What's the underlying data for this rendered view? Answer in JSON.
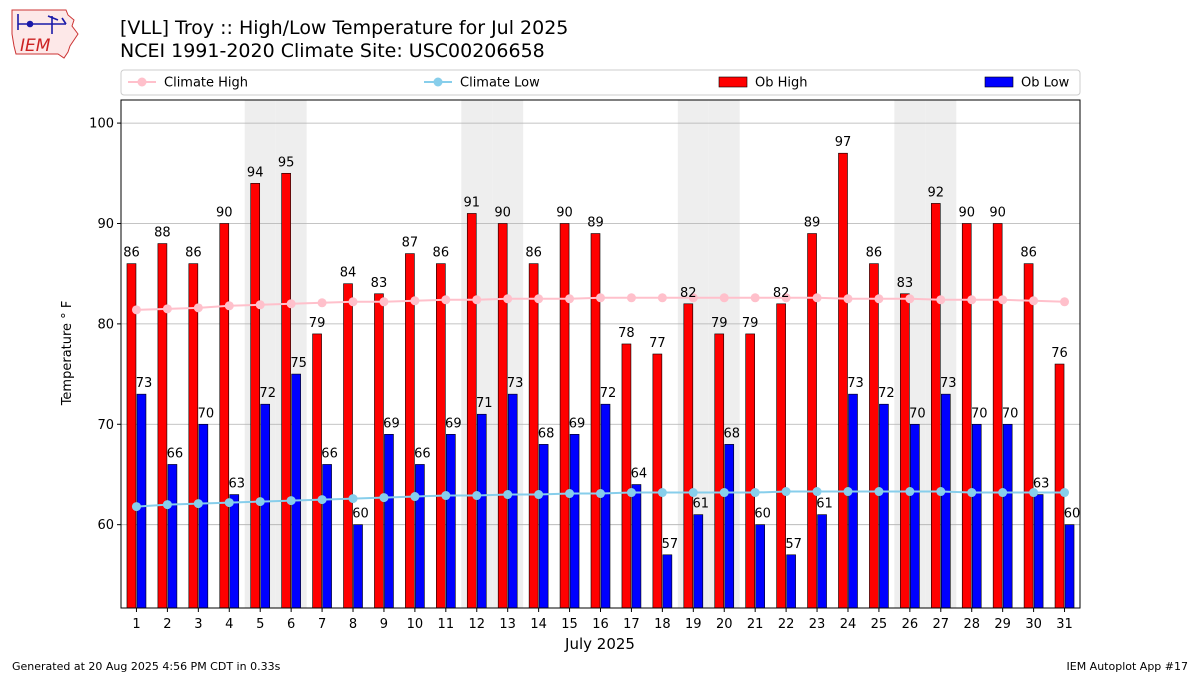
{
  "header": {
    "title_line1": "[VLL] Troy :: High/Low Temperature for Jul 2025",
    "title_line2": "NCEI 1991-2020 Climate Site: USC00206658",
    "logo_text": "IEM"
  },
  "footer": {
    "generated": "Generated at 20 Aug 2025 4:56 PM CDT in 0.33s",
    "app": "IEM Autoplot App #17"
  },
  "colors": {
    "ob_high": "#ff0000",
    "ob_low": "#0000ff",
    "climate_high": "#ffc0cb",
    "climate_low": "#87ceeb",
    "weekend_band": "#eeeeee",
    "grid": "#b0b0b0"
  },
  "chart_data": {
    "type": "bar",
    "xlabel": "July 2025",
    "ylabel": "Temperature ° F",
    "ylim": [
      51.7,
      102.3
    ],
    "yticks": [
      60,
      70,
      80,
      90,
      100
    ],
    "grid": "horizontal",
    "legend_position": "top",
    "categories": [
      "1",
      "2",
      "3",
      "4",
      "5",
      "6",
      "7",
      "8",
      "9",
      "10",
      "11",
      "12",
      "13",
      "14",
      "15",
      "16",
      "17",
      "18",
      "19",
      "20",
      "21",
      "22",
      "23",
      "24",
      "25",
      "26",
      "27",
      "28",
      "29",
      "30",
      "31"
    ],
    "weekend_days": [
      5,
      6,
      12,
      13,
      19,
      20,
      26,
      27
    ],
    "series": [
      {
        "name": "Ob High",
        "kind": "bar",
        "values": [
          86,
          88,
          86,
          90,
          94,
          95,
          79,
          84,
          83,
          87,
          86,
          91,
          90,
          86,
          90,
          89,
          78,
          77,
          82,
          79,
          79,
          82,
          89,
          97,
          86,
          83,
          92,
          90,
          90,
          86,
          76
        ],
        "labels": [
          "86",
          "88",
          "86",
          "90",
          "94",
          "95",
          "79",
          "84",
          "83",
          "87",
          "86",
          "91",
          "90",
          "86",
          "90",
          "89",
          "78",
          "77",
          "82",
          "79",
          "79",
          "82",
          "89",
          "97",
          "86",
          "83",
          "92",
          "90",
          "90",
          "86",
          "76"
        ]
      },
      {
        "name": "Ob Low",
        "kind": "bar",
        "values": [
          73,
          66,
          70,
          63,
          72,
          75,
          66,
          60,
          69,
          66,
          69,
          71,
          73,
          68,
          69,
          72,
          64,
          57,
          61,
          68,
          60,
          57,
          61,
          73,
          72,
          70,
          73,
          70,
          70,
          63,
          60
        ],
        "labels": [
          "73",
          "66",
          "70",
          "63",
          "72",
          "75",
          "66",
          "60",
          "69",
          "66",
          "69",
          "71",
          "73",
          "68",
          "69",
          "72",
          "64",
          "57",
          "61",
          "68",
          "60",
          "57",
          "61",
          "73",
          "72",
          "70",
          "73",
          "70",
          "70",
          "63",
          "60"
        ]
      },
      {
        "name": "Climate High",
        "kind": "line",
        "values": [
          81.4,
          81.5,
          81.6,
          81.8,
          81.9,
          82.0,
          82.1,
          82.2,
          82.2,
          82.3,
          82.4,
          82.4,
          82.5,
          82.5,
          82.5,
          82.6,
          82.6,
          82.6,
          82.6,
          82.6,
          82.6,
          82.6,
          82.6,
          82.5,
          82.5,
          82.5,
          82.4,
          82.4,
          82.4,
          82.3,
          82.2
        ]
      },
      {
        "name": "Climate Low",
        "kind": "line",
        "values": [
          61.8,
          62.0,
          62.1,
          62.2,
          62.3,
          62.4,
          62.5,
          62.6,
          62.7,
          62.8,
          62.9,
          62.9,
          63.0,
          63.0,
          63.1,
          63.1,
          63.2,
          63.2,
          63.2,
          63.2,
          63.2,
          63.3,
          63.3,
          63.3,
          63.3,
          63.3,
          63.3,
          63.2,
          63.2,
          63.2,
          63.2
        ]
      }
    ]
  }
}
